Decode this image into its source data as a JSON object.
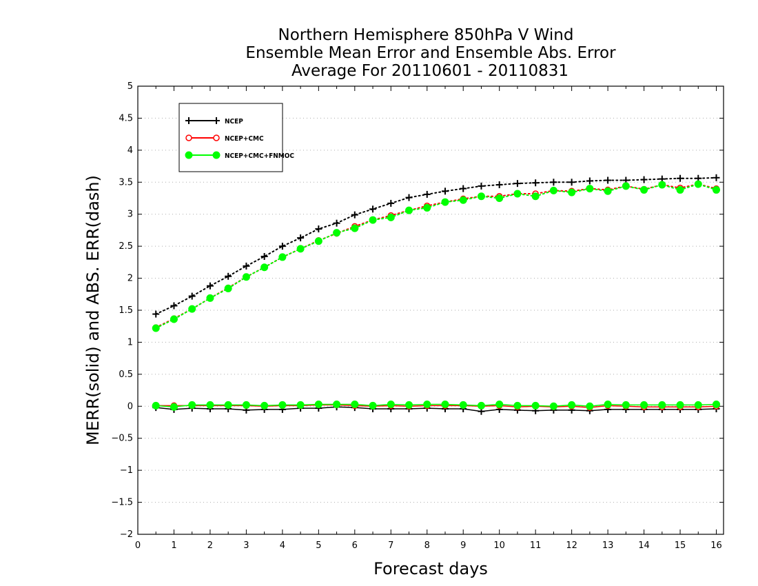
{
  "chart_data": {
    "type": "line",
    "title": [
      "Northern Hemisphere 850hPa V Wind",
      "Ensemble Mean Error and Ensemble Abs. Error",
      "Average For 20110601 - 20110831"
    ],
    "xlabel": "Forecast days",
    "ylabel": "MERR(solid) and ABS. ERR(dash)",
    "xlim": [
      0,
      16.2
    ],
    "ylim": [
      -2,
      5
    ],
    "x_ticks": [
      0,
      1,
      2,
      3,
      4,
      5,
      6,
      7,
      8,
      9,
      10,
      11,
      12,
      13,
      14,
      15,
      16
    ],
    "y_ticks": [
      5,
      4.5,
      4,
      3.5,
      3,
      2.5,
      2,
      1.5,
      1,
      0.5,
      0,
      -0.5,
      -1,
      -1.5,
      -2
    ],
    "y_tick_labels": [
      "5",
      "4.5",
      "4",
      "3.5",
      "3",
      "2.5",
      "2",
      "1.5",
      "1",
      "0.5",
      "0",
      "−0.5",
      "−1",
      "−1.5",
      "−2"
    ],
    "grid": "horizontal dotted",
    "legend_position": "top-left",
    "x": [
      0.5,
      1,
      1.5,
      2,
      2.5,
      3,
      3.5,
      4,
      4.5,
      5,
      5.5,
      6,
      6.5,
      7,
      7.5,
      8,
      8.5,
      9,
      9.5,
      10,
      10.5,
      11,
      11.5,
      12,
      12.5,
      13,
      13.5,
      14,
      14.5,
      15,
      15.5,
      16
    ],
    "series": [
      {
        "name": "NCEP",
        "color": "#000000",
        "marker": "plus",
        "abs_err": [
          1.44,
          1.57,
          1.72,
          1.88,
          2.03,
          2.19,
          2.34,
          2.5,
          2.63,
          2.77,
          2.86,
          2.99,
          3.08,
          3.17,
          3.26,
          3.31,
          3.36,
          3.4,
          3.44,
          3.46,
          3.48,
          3.49,
          3.5,
          3.5,
          3.52,
          3.53,
          3.53,
          3.54,
          3.55,
          3.56,
          3.56,
          3.57
        ],
        "mean_err": [
          -0.02,
          -0.05,
          -0.03,
          -0.04,
          -0.04,
          -0.06,
          -0.05,
          -0.05,
          -0.03,
          -0.03,
          -0.01,
          -0.02,
          -0.04,
          -0.04,
          -0.04,
          -0.03,
          -0.04,
          -0.04,
          -0.08,
          -0.05,
          -0.06,
          -0.07,
          -0.06,
          -0.06,
          -0.07,
          -0.05,
          -0.05,
          -0.05,
          -0.05,
          -0.05,
          -0.05,
          -0.04
        ]
      },
      {
        "name": "NCEP+CMC",
        "color": "#ff0000",
        "marker": "open-circle",
        "abs_err": [
          1.23,
          1.37,
          1.52,
          1.69,
          1.85,
          2.02,
          2.17,
          2.33,
          2.46,
          2.59,
          2.7,
          2.81,
          2.91,
          2.98,
          3.06,
          3.13,
          3.19,
          3.24,
          3.28,
          3.28,
          3.32,
          3.32,
          3.37,
          3.36,
          3.4,
          3.38,
          3.44,
          3.39,
          3.46,
          3.41,
          3.47,
          3.4
        ],
        "mean_err": [
          0.01,
          0.01,
          0.01,
          0.01,
          0.01,
          0.01,
          0.0,
          0.01,
          0.01,
          0.02,
          0.02,
          0.01,
          0.0,
          0.01,
          0.0,
          0.01,
          0.01,
          0.01,
          0.0,
          0.01,
          -0.01,
          0.0,
          -0.01,
          0.0,
          -0.02,
          0.01,
          0.0,
          -0.01,
          -0.01,
          -0.01,
          -0.01,
          0.0
        ]
      },
      {
        "name": "NCEP+CMC+FNMOC",
        "color": "#00ff00",
        "marker": "filled-circle",
        "abs_err": [
          1.22,
          1.36,
          1.52,
          1.69,
          1.84,
          2.02,
          2.17,
          2.33,
          2.46,
          2.58,
          2.71,
          2.78,
          2.91,
          2.95,
          3.06,
          3.1,
          3.19,
          3.22,
          3.28,
          3.25,
          3.32,
          3.28,
          3.37,
          3.34,
          3.4,
          3.36,
          3.44,
          3.38,
          3.46,
          3.38,
          3.47,
          3.38
        ],
        "mean_err": [
          0.01,
          -0.01,
          0.02,
          0.02,
          0.02,
          0.02,
          0.01,
          0.02,
          0.02,
          0.03,
          0.03,
          0.03,
          0.01,
          0.03,
          0.02,
          0.03,
          0.03,
          0.02,
          0.01,
          0.03,
          0.01,
          0.01,
          0.0,
          0.02,
          0.0,
          0.03,
          0.02,
          0.02,
          0.02,
          0.02,
          0.02,
          0.03
        ]
      }
    ]
  }
}
